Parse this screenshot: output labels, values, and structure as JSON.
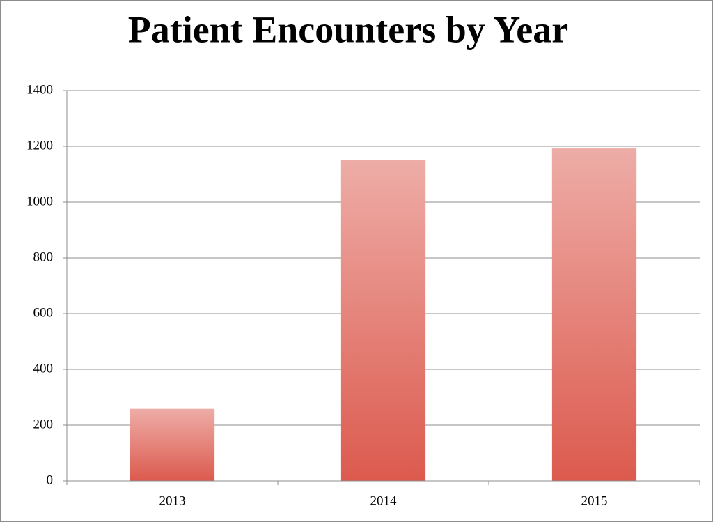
{
  "chart_data": {
    "type": "bar",
    "title": "Patient Encounters by Year",
    "categories": [
      "2013",
      "2014",
      "2015"
    ],
    "values": [
      258,
      1150,
      1192
    ],
    "color": "#dc5a4e",
    "ylim": [
      0,
      1400
    ],
    "yticks": [
      0,
      200,
      400,
      600,
      800,
      1000,
      1200,
      1400
    ],
    "grid": true
  }
}
